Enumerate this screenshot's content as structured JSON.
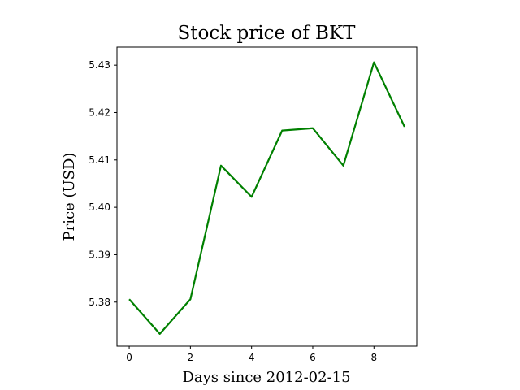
{
  "chart_data": {
    "type": "line",
    "title": "Stock price of BKT",
    "xlabel": "Days since 2012-02-15",
    "ylabel": "Price (USD)",
    "x": [
      0,
      1,
      2,
      3,
      4,
      5,
      6,
      7,
      8,
      9
    ],
    "series": [
      {
        "color": "#008000",
        "values": [
          5.3806,
          5.3733,
          5.3806,
          5.4088,
          5.4022,
          5.4162,
          5.4167,
          5.4088,
          5.4306,
          5.417
        ]
      }
    ],
    "xlim": [
      -0.4,
      9.4
    ],
    "ylim": [
      5.3707,
      5.4338
    ],
    "xticks": [
      0,
      2,
      4,
      6,
      8
    ],
    "xtick_labels": [
      "0",
      "2",
      "4",
      "6",
      "8"
    ],
    "yticks": [
      5.38,
      5.39,
      5.4,
      5.41,
      5.42,
      5.43
    ],
    "ytick_labels": [
      "5.38",
      "5.39",
      "5.40",
      "5.41",
      "5.42",
      "5.43"
    ],
    "grid": false,
    "legend": "none"
  }
}
